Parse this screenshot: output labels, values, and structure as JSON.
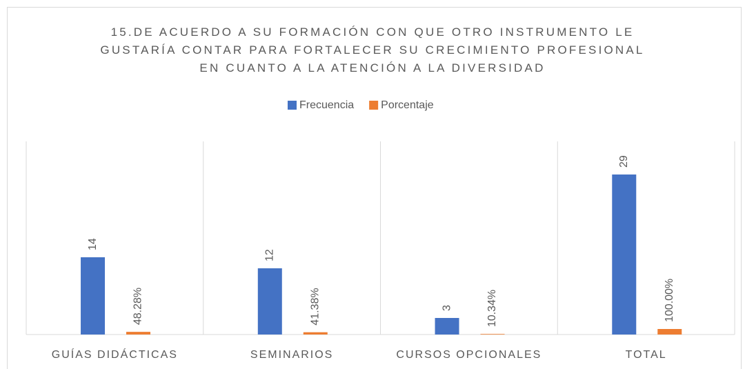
{
  "chart_data": {
    "type": "bar",
    "title": "15.DE ACUERDO A SU FORMACIÓN CON QUE OTRO INSTRUMENTO LE GUSTARÍA CONTAR PARA FORTALECER SU CRECIMIENTO PROFESIONAL EN CUANTO A LA ATENCIÓN A LA DIVERSIDAD",
    "categories": [
      "GUÍAS DIDÁCTICAS",
      "SEMINARIOS",
      "CURSOS OPCIONALES",
      "TOTAL"
    ],
    "series": [
      {
        "name": "Frecuencia",
        "color": "#4472c4",
        "values": [
          14,
          12,
          3,
          29
        ]
      },
      {
        "name": "Porcentaje",
        "color": "#ed7d31",
        "values": [
          0.4828,
          0.4138,
          0.1034,
          1.0
        ],
        "value_labels": [
          "48.28%",
          "41.38%",
          "10.34%",
          "100.00%"
        ]
      }
    ],
    "ylim": [
      0,
      35
    ],
    "legend": "top"
  }
}
